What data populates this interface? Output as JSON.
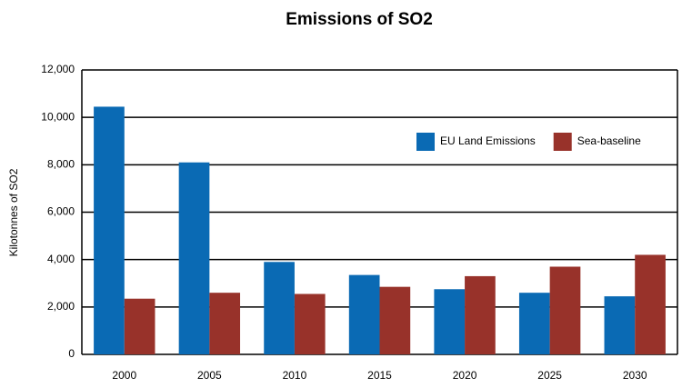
{
  "chart_data": {
    "type": "bar",
    "title": "Emissions of SO2",
    "y_label": "Kilotonnes of SO2",
    "categories": [
      "2000",
      "2005",
      "2010",
      "2015",
      "2020",
      "2025",
      "2030"
    ],
    "series": [
      {
        "name": "EU Land Emissions",
        "color": "#0a6ab4",
        "values": [
          10450,
          8100,
          3900,
          3350,
          2750,
          2600,
          2450
        ]
      },
      {
        "name": "Sea-baseline",
        "color": "#98322a",
        "values": [
          2350,
          2600,
          2550,
          2850,
          3300,
          3700,
          4200
        ]
      }
    ],
    "ylim": [
      0,
      12000
    ],
    "yticks": [
      0,
      {
        "value": 2000,
        "label": "2,000"
      },
      {
        "value": 4000,
        "label": "4,000"
      },
      {
        "value": 6000,
        "label": "6,000"
      },
      {
        "value": 8000,
        "label": "8,000"
      },
      {
        "value": 10000,
        "label": "10,000"
      },
      {
        "value": 12000,
        "label": "12,000"
      }
    ],
    "grid": true,
    "legend": "upper right"
  }
}
